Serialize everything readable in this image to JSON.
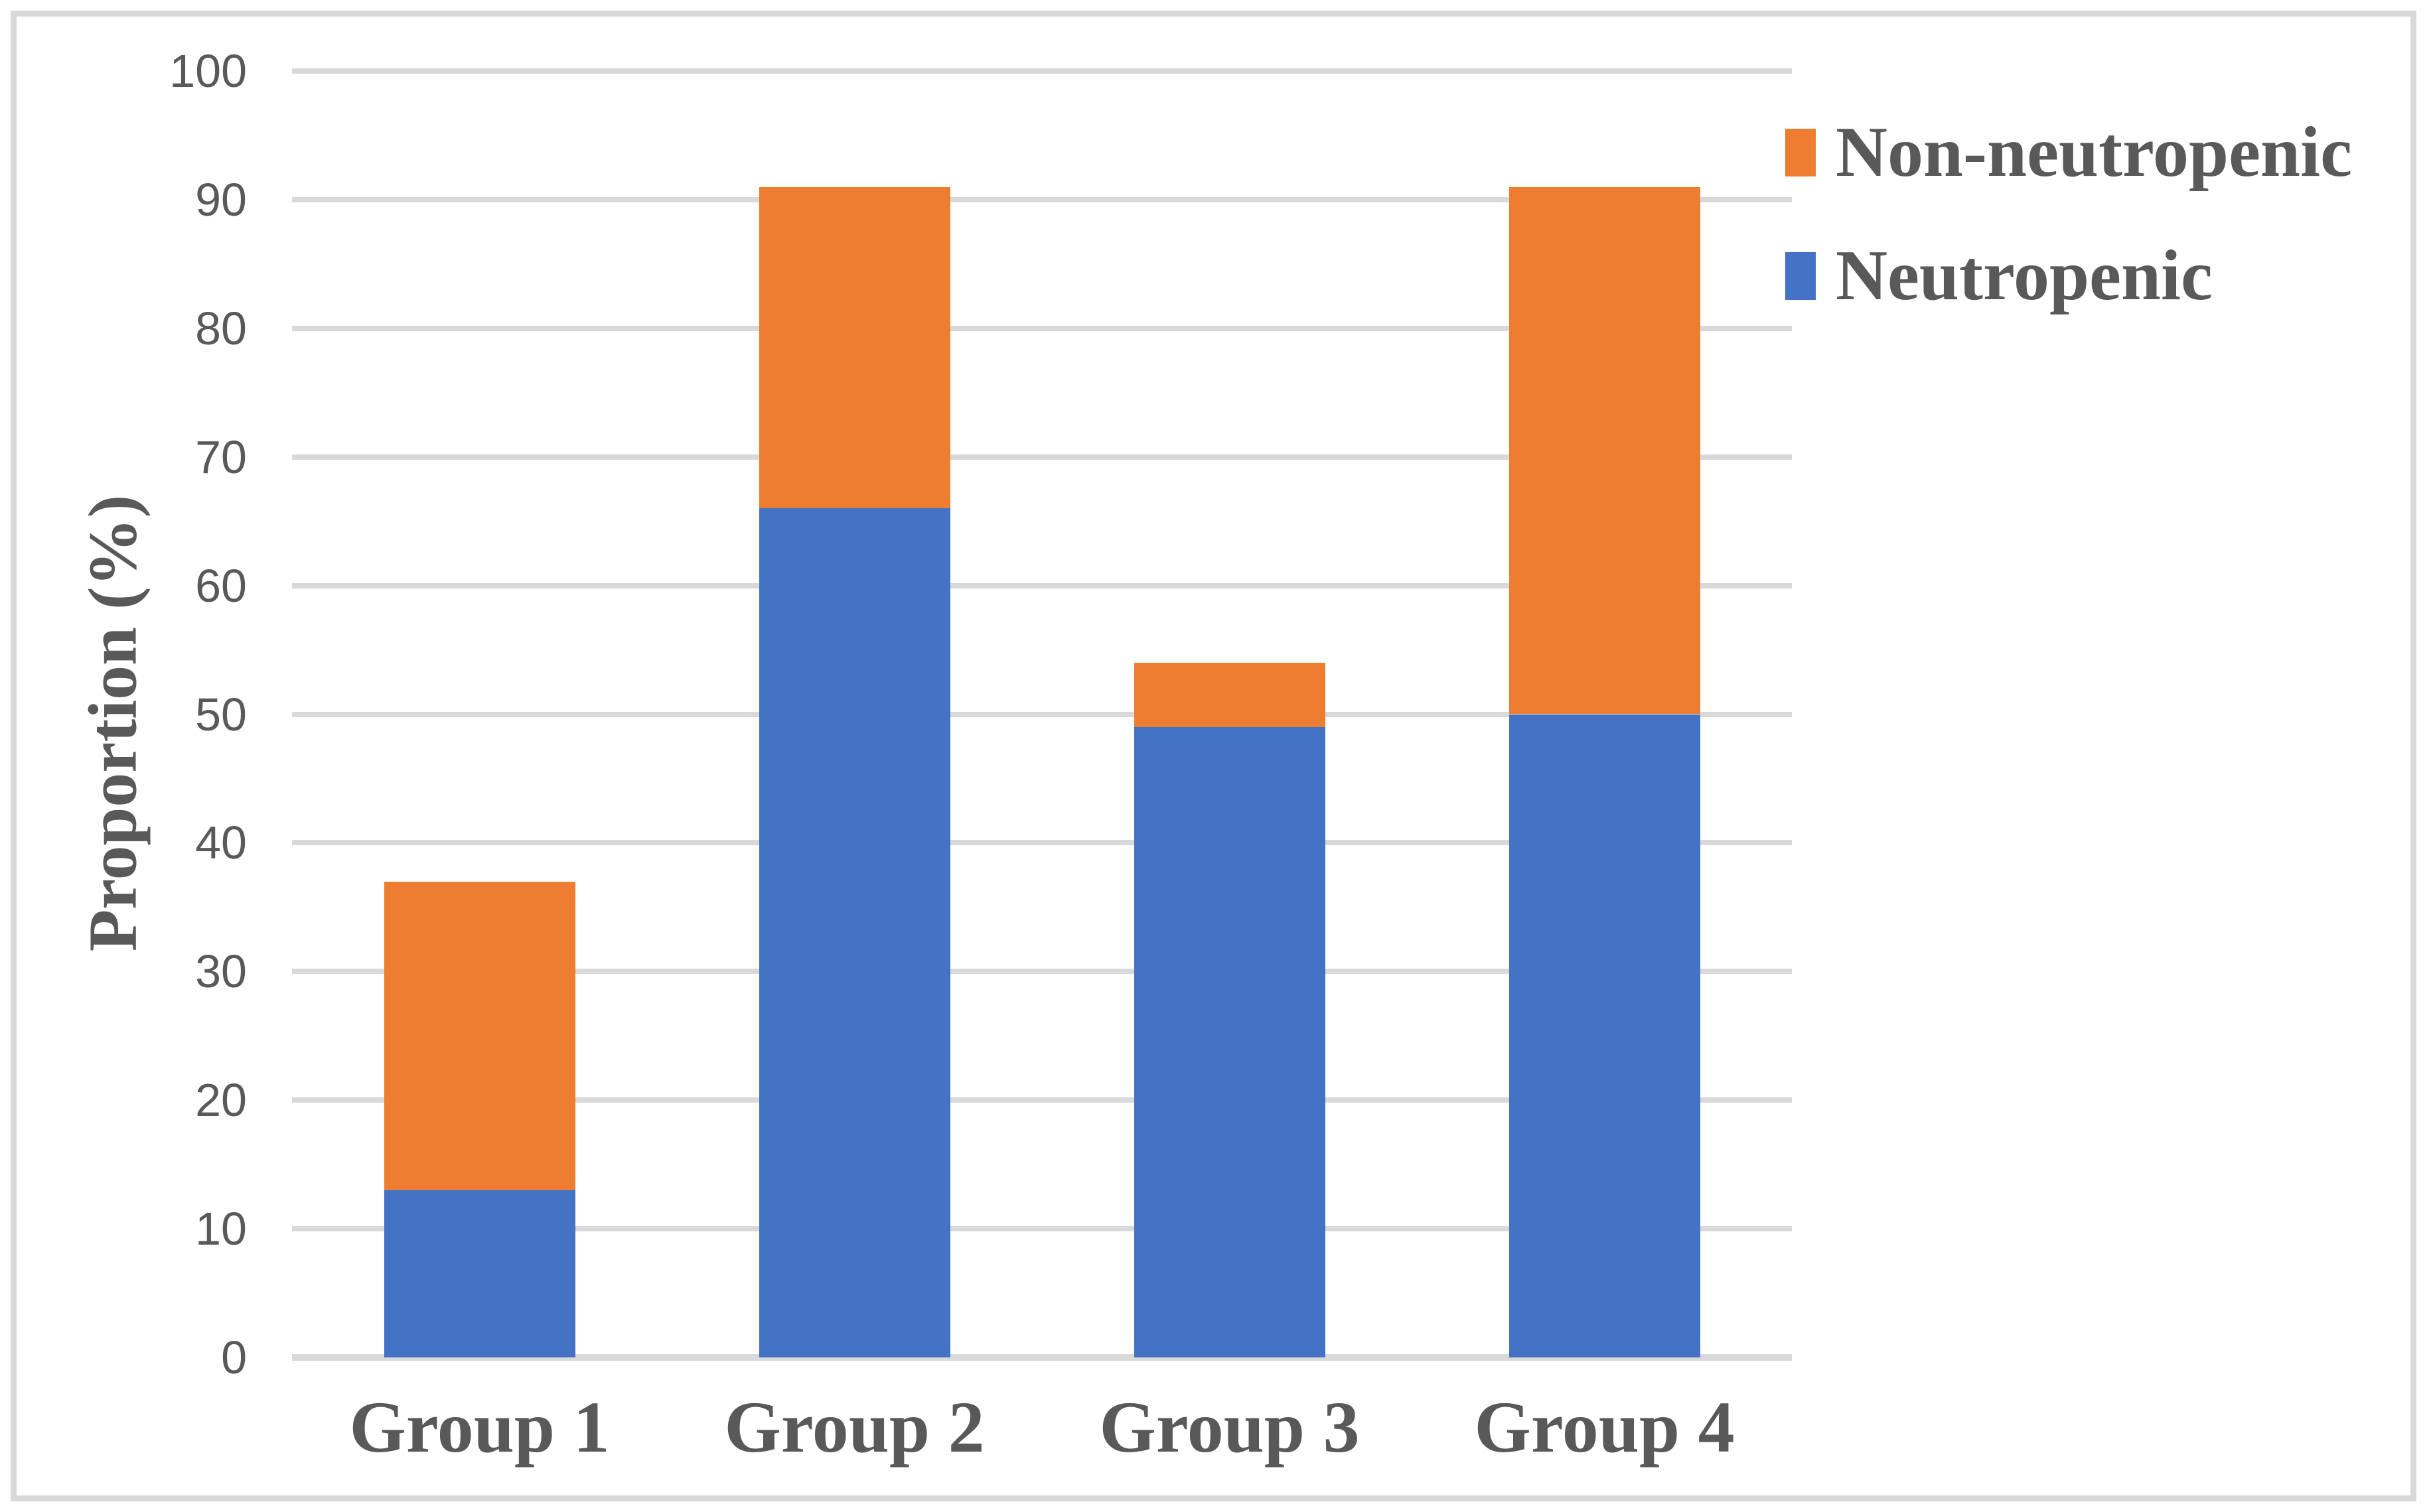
{
  "chart_data": {
    "type": "bar",
    "stacked": true,
    "title": "",
    "xlabel": "",
    "ylabel": "Proportion (%)",
    "categories": [
      "Group 1",
      "Group 2",
      "Group 3",
      "Group 4"
    ],
    "series": [
      {
        "name": "Neutropenic",
        "color": "#4472C4",
        "values": [
          13,
          66,
          49,
          50
        ]
      },
      {
        "name": "Non-neutropenic",
        "color": "#ED7D31",
        "values": [
          24,
          25,
          5,
          41
        ]
      }
    ],
    "stack_totals": [
      37,
      91,
      54,
      91
    ],
    "ylim": [
      0,
      100
    ],
    "yticks": [
      0,
      10,
      20,
      30,
      40,
      50,
      60,
      70,
      80,
      90,
      100
    ],
    "grid": "horizontal",
    "legend_position": "top-right",
    "legend_order": [
      "Non-neutropenic",
      "Neutropenic"
    ]
  },
  "colors": {
    "neutropenic_blue": "#4472C4",
    "non_neutropenic_orange": "#ED7D31",
    "text": "#595959",
    "gridline": "#D9D9D9",
    "axis_line": "#D9D9D9",
    "frame_border": "#D9D9D9",
    "background": "#FFFFFF"
  }
}
